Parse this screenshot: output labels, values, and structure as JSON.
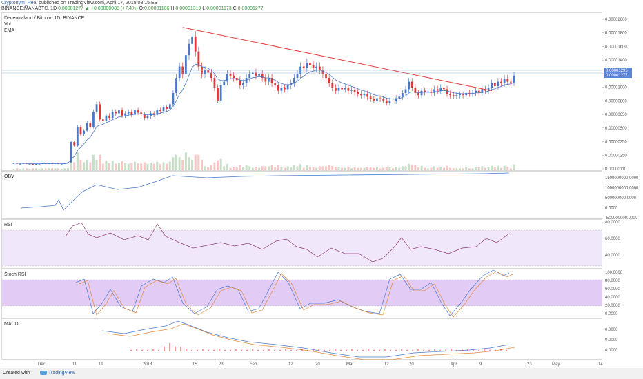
{
  "header": {
    "author": "Cryptonym_Real",
    "published": " published on TradingView.com, April 17, 2018 08:15 EST",
    "symbol": "BINANCE:MANABTC, 1D",
    "last": "0.00001277",
    "change": "+0.00000088 (+7.4%)",
    "o_label": "O:",
    "o": "0.00001186",
    "h_label": "H:",
    "h": "0.00001319",
    "l_label": "L:",
    "l": "0.00001173",
    "c_label": "C:",
    "c": "0.00001277"
  },
  "main_pane": {
    "title": "Decentraland / Bitcoin, 1D, BINANCE",
    "vol_label": "Vol",
    "ema_label": "EMA"
  },
  "indicators": {
    "obv": "OBV",
    "rsi": "RSI",
    "stoch": "Stoch RSI",
    "macd": "MACD"
  },
  "footer": {
    "created_with": "Created with",
    "brand": "TradingView"
  },
  "colors": {
    "up": "#4a78c8",
    "down": "#e03838",
    "trendline": "#e23b3b",
    "ema": "#4a78c8",
    "band": "#f1e7fb",
    "stoch_band": "#e2cbf5",
    "price_line": "#87b7e6"
  },
  "chart_data": [
    {
      "type": "candlestick",
      "title": "Decentraland / Bitcoin, 1D, BINANCE",
      "x_ticks": [
        "Dec",
        "11",
        "19",
        "2018",
        "15",
        "23",
        "Feb",
        "12",
        "20",
        "Mar",
        "12",
        "20",
        "Apr",
        "9",
        "23",
        "May",
        "14"
      ],
      "y_ticks": [
        "0.00002000",
        "0.00001800",
        "0.00001600",
        "0.00001400",
        "0.00001200",
        "0.00001000",
        "0.00000800",
        "0.00000650",
        "0.00000500",
        "0.00000350",
        "0.00000250",
        "0.00000110"
      ],
      "price_labels": [
        "0.00001295",
        "0.00001277"
      ],
      "close": [
        1.2e-06,
        1.1e-06,
        1.1e-06,
        1.2e-06,
        1.1e-06,
        1.1e-06,
        1e-06,
        1.1e-06,
        1.1e-06,
        1.2e-06,
        1.1e-06,
        1.2e-06,
        1.1e-06,
        1.2e-06,
        1.1e-06,
        1.1e-06,
        1.2e-06,
        1.3e-06,
        4e-06,
        3.5e-06,
        6e-06,
        5e-06,
        5.5e-06,
        6.5e-06,
        6e-06,
        8e-06,
        9e-06,
        7e-06,
        6.8e-06,
        7.5e-06,
        7.2e-06,
        8e-06,
        7.8e-06,
        8.2e-06,
        7.5e-06,
        7.8e-06,
        8e-06,
        7.6e-06,
        8.2e-06,
        7.9e-06,
        7.7e-06,
        7.2e-06,
        7.4e-06,
        7.8e-06,
        7.6e-06,
        8.2e-06,
        8.1e-06,
        8.6e-06,
        8.4e-06,
        9e-06,
        1.05e-05,
        1.25e-05,
        1.4e-05,
        1.3e-05,
        1.55e-05,
        1.7e-05,
        1.8e-05,
        1.6e-05,
        1.4e-05,
        1.3e-05,
        1.35e-05,
        1.32e-05,
        1.25e-05,
        1.12e-05,
        9.5e-06,
        1.15e-05,
        1.2e-05,
        1.3e-05,
        1.28e-05,
        1.25e-05,
        1.22e-05,
        1.15e-05,
        1.18e-05,
        1.25e-05,
        1.3e-05,
        1.32e-05,
        1.28e-05,
        1.3e-05,
        1.25e-05,
        1.2e-05,
        1.25e-05,
        1.18e-05,
        1.15e-05,
        1.08e-05,
        1.12e-05,
        1.1e-05,
        1.15e-05,
        1.18e-05,
        1.25e-05,
        1.3e-05,
        1.4e-05,
        1.38e-05,
        1.45e-05,
        1.42e-05,
        1.38e-05,
        1.4e-05,
        1.35e-05,
        1.3e-05,
        1.25e-05,
        1.18e-05,
        1.12e-05,
        1.08e-05,
        1.12e-05,
        1.1e-05,
        1.12e-05,
        1.08e-05,
        1.09e-05,
        1.06e-05,
        1.04e-05,
        1.02e-05,
        1.04e-05,
        1e-05,
        9.7e-06,
        9.5e-06,
        9.8e-06,
        9.7e-06,
        9.5e-06,
        9.2e-06,
        9.5e-06,
        9.4e-06,
        9.8e-06,
        1e-05,
        1.05e-05,
        1.1e-05,
        1.2e-05,
        1.12e-05,
        1.05e-05,
        1.02e-05,
        1.08e-05,
        1.06e-05,
        1.07e-05,
        1.05e-05,
        1.1e-05,
        1.08e-05,
        1.12e-05,
        1.1e-05,
        1.04e-05,
        1.02e-05,
        1.01e-05,
        1.02e-05,
        1.03e-05,
        1.02e-05,
        1.05e-05,
        1.04e-05,
        1.05e-05,
        1.08e-05,
        1.05e-05,
        1.1e-05,
        1.08e-05,
        1.12e-05,
        1.18e-05,
        1.14e-05,
        1.2e-05,
        1.18e-05,
        1.24e-05,
        1.2e-05,
        1.19e-05,
        1.28e-05
      ],
      "trendline": {
        "start": 1.92e-05,
        "end": 1.08e-05
      }
    },
    {
      "type": "line",
      "name": "OBV",
      "y_ticks": [
        "1500000000.0000",
        "1000000000.0000",
        "500000000.0000",
        "0.0000",
        "-500000000.0000"
      ]
    },
    {
      "type": "line",
      "name": "RSI",
      "y_ticks": [
        "80.0000",
        "60.0000",
        "40.0000"
      ]
    },
    {
      "type": "line",
      "name": "Stoch RSI",
      "y_ticks": [
        "100.0000",
        "80.0000",
        "60.0000",
        "40.0000",
        "20.0000",
        "0.0000"
      ]
    },
    {
      "type": "line",
      "name": "MACD",
      "y_ticks": [
        "0.0000",
        "0.0000",
        "0.0000"
      ]
    }
  ]
}
